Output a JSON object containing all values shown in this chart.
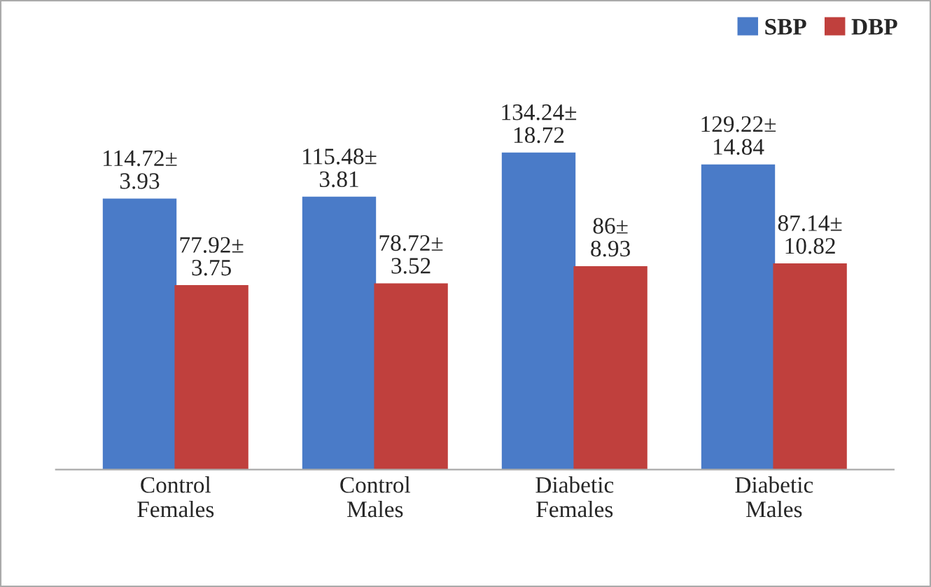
{
  "chart_data": {
    "type": "bar",
    "categories": [
      "Control\nFemales",
      "Control\nMales",
      "Diabetic\nFemales",
      "Diabetic\nMales"
    ],
    "series": [
      {
        "name": "SBP",
        "color": "#4a7bc8",
        "values": [
          114.72,
          115.48,
          134.24,
          129.22
        ],
        "value_labels": [
          "114.72±\n3.93",
          "115.48±\n3.81",
          "134.24±\n18.72",
          "129.22±\n14.84"
        ]
      },
      {
        "name": "DBP",
        "color": "#c0403d",
        "values": [
          77.92,
          78.72,
          86,
          87.14
        ],
        "value_labels": [
          "77.92±\n3.75",
          "78.72±\n3.52",
          "86±\n8.93",
          "87.14±\n10.82"
        ]
      }
    ],
    "legend": "top right",
    "grid": false
  }
}
